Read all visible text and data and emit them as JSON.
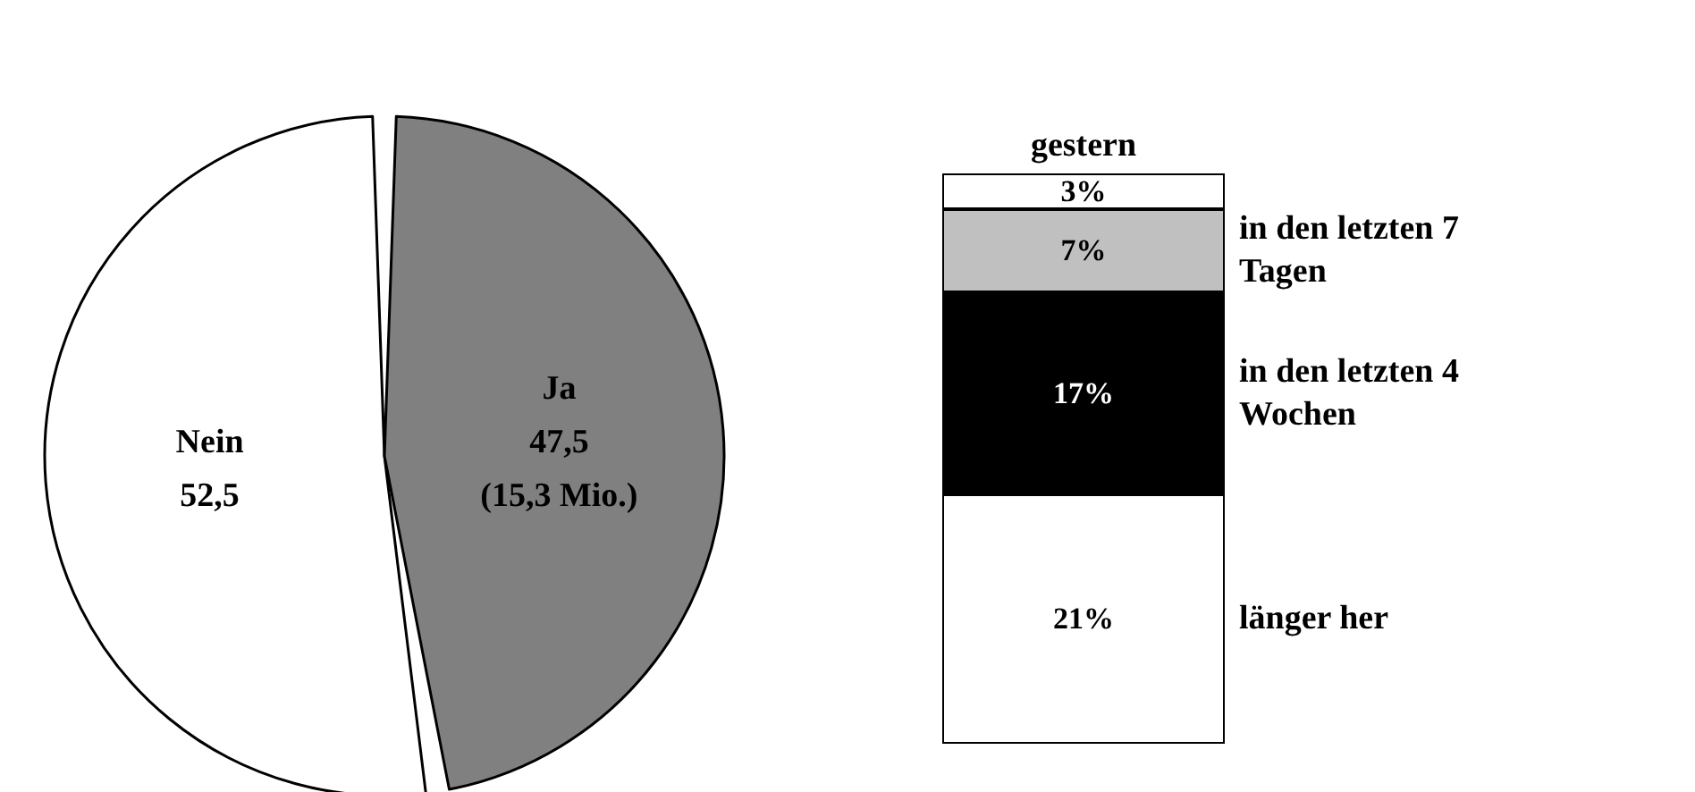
{
  "chart_data": [
    {
      "type": "pie",
      "categories": [
        "Nein",
        "Ja"
      ],
      "values": [
        52.5,
        47.5
      ],
      "colors": [
        "#ffffff",
        "#808080"
      ],
      "value_labels": [
        "52,5",
        "47,5\n(15,3 Mio.)"
      ]
    },
    {
      "type": "bar",
      "stacked": true,
      "categories": [
        null
      ],
      "series": [
        {
          "name": "länger her",
          "color": "#ffffff",
          "values": [
            21
          ],
          "value_labels": [
            "21%"
          ]
        },
        {
          "name": "in den letzten 4 Wochen",
          "color": "#000000",
          "values": [
            17
          ],
          "value_labels": [
            "17%"
          ]
        },
        {
          "name": "in den letzten 7 Tagen",
          "color": "#c0c0c0",
          "values": [
            7
          ],
          "value_labels": [
            "7%"
          ]
        },
        {
          "name": "gestern",
          "color": "#ffffff",
          "values": [
            3
          ],
          "value_labels": [
            "3%"
          ]
        }
      ]
    }
  ]
}
